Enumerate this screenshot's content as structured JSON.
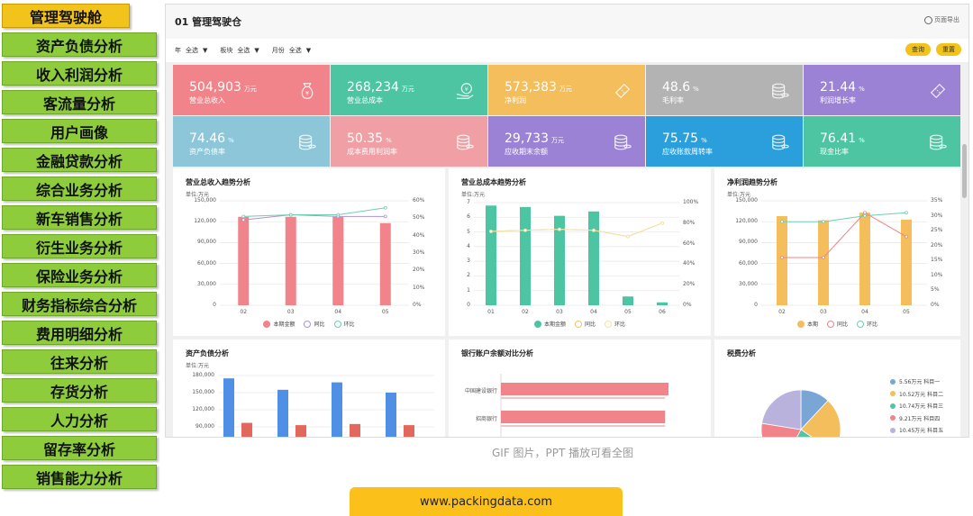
{
  "sidebar": {
    "items": [
      {
        "label": "管理驾驶舱",
        "active": true
      },
      {
        "label": "资产负债分析"
      },
      {
        "label": "收入利润分析"
      },
      {
        "label": "客流量分析"
      },
      {
        "label": "用户画像"
      },
      {
        "label": "金融贷款分析"
      },
      {
        "label": "综合业务分析"
      },
      {
        "label": "新车销售分析"
      },
      {
        "label": "衍生业务分析"
      },
      {
        "label": "保险业务分析"
      },
      {
        "label": "财务指标综合分析"
      },
      {
        "label": "费用明细分析"
      },
      {
        "label": "往来分析"
      },
      {
        "label": "存货分析"
      },
      {
        "label": "人力分析"
      },
      {
        "label": "留存率分析"
      },
      {
        "label": "销售能力分析"
      }
    ]
  },
  "dashboard": {
    "title": "01 管理驾驶仓",
    "export_label": "页面导出",
    "filters": [
      {
        "label": "年",
        "value": "全选"
      },
      {
        "label": "板块",
        "value": "全选"
      },
      {
        "label": "月份",
        "value": "全选"
      }
    ],
    "query_button": "查询",
    "reset_button": "重置"
  },
  "kpis": [
    {
      "value": "504,903",
      "unit": "万元",
      "label": "营业总收入",
      "color": "#f0848a",
      "icon": "money-bag-icon"
    },
    {
      "value": "268,234",
      "unit": "万元",
      "label": "营业总成本",
      "color": "#4ec5a2",
      "icon": "hand-coin-icon"
    },
    {
      "value": "573,383",
      "unit": "万元",
      "label": "净利润",
      "color": "#f4be5c",
      "icon": "ticket-icon"
    },
    {
      "value": "48.6",
      "unit": "%",
      "label": "毛利率",
      "color": "#b3b3b3",
      "icon": "coin-stack-icon"
    },
    {
      "value": "21.44",
      "unit": "%",
      "label": "利润增长率",
      "color": "#9b82d4",
      "icon": "ticket-icon"
    },
    {
      "value": "74.46",
      "unit": "%",
      "label": "资产负债率",
      "color": "#8cc6d8",
      "icon": "coin-stack-icon"
    },
    {
      "value": "50.35",
      "unit": "%",
      "label": "成本费用利润率",
      "color": "#f0a0a4",
      "icon": "coin-stack-icon"
    },
    {
      "value": "29,733",
      "unit": "万元",
      "label": "应收期末余额",
      "color": "#9b82d4",
      "icon": "coin-stack-icon"
    },
    {
      "value": "75.75",
      "unit": "%",
      "label": "应收账款周转率",
      "color": "#2a9fdc",
      "icon": "coin-stack-icon"
    },
    {
      "value": "76.41",
      "unit": "%",
      "label": "现金比率",
      "color": "#4ec5a2",
      "icon": "coin-stack-icon"
    }
  ],
  "colors": {
    "red": "#f0848a",
    "green": "#4ec5a2",
    "orange": "#f4be5c",
    "blue": "#4f8fe6",
    "bar_red": "#e2675c"
  },
  "chart_data": [
    {
      "type": "bar",
      "title": "营业总收入趋势分析",
      "unit_label": "单位:万元",
      "categories": [
        "02",
        "03",
        "04",
        "05"
      ],
      "series": [
        {
          "name": "本期金额",
          "type": "bar",
          "values": [
            127000,
            127000,
            127000,
            118000
          ]
        },
        {
          "name": "同比",
          "type": "line",
          "axis": "right",
          "values": [
            49,
            52,
            51,
            51
          ]
        },
        {
          "name": "环比",
          "type": "line",
          "axis": "right",
          "values": [
            51,
            52,
            52,
            56
          ]
        }
      ],
      "y_left_ticks": [
        "150,000",
        "120,000",
        "90,000",
        "60,000",
        "30,000",
        "0"
      ],
      "y_right_ticks": [
        "60%",
        "50%",
        "40%",
        "30%",
        "20%",
        "10%",
        "0%"
      ],
      "ylim": [
        0,
        150000
      ],
      "ylim_right": [
        0,
        60
      ]
    },
    {
      "type": "bar",
      "title": "营业总成本趋势分析",
      "unit_label": "单位:万元",
      "categories": [
        "01",
        "02",
        "03",
        "04",
        "05",
        "06"
      ],
      "series": [
        {
          "name": "本期金额",
          "type": "bar",
          "values": [
            6.8,
            6.7,
            6.1,
            6.4,
            0.6,
            0.2
          ]
        },
        {
          "name": "同比",
          "type": "line",
          "axis": "right",
          "values": [
            72,
            73,
            74,
            73,
            67,
            80
          ]
        },
        {
          "name": "环比",
          "type": "line",
          "axis": "right",
          "values": [
            72,
            73,
            74,
            73,
            67,
            80
          ]
        }
      ],
      "y_left_ticks": [
        "7",
        "6",
        "5",
        "4",
        "3",
        "2",
        "1",
        "0"
      ],
      "y_right_ticks": [
        "100%",
        "80%",
        "60%",
        "40%",
        "20%",
        "0%"
      ],
      "ylim": [
        0,
        7
      ],
      "ylim_right": [
        0,
        100
      ]
    },
    {
      "type": "bar",
      "title": "净利润趋势分析",
      "unit_label": "单位:万元",
      "categories": [
        "02",
        "03",
        "04",
        "05"
      ],
      "series": [
        {
          "name": "本期",
          "type": "bar",
          "values": [
            128000,
            122000,
            133000,
            123000
          ]
        },
        {
          "name": "同比",
          "type": "line",
          "axis": "right",
          "values": [
            16,
            16,
            31,
            23
          ]
        },
        {
          "name": "环比",
          "type": "line",
          "axis": "right",
          "values": [
            28,
            28,
            30,
            31
          ]
        }
      ],
      "y_left_ticks": [
        "150,000",
        "120,000",
        "90,000",
        "60,000",
        "30,000",
        "0"
      ],
      "y_right_ticks": [
        "35%",
        "30%",
        "25%",
        "20%",
        "15%",
        "10%",
        "5%",
        "0%"
      ],
      "ylim": [
        0,
        150000
      ],
      "ylim_right": [
        0,
        35
      ]
    },
    {
      "type": "bar",
      "title": "资产负债分析",
      "unit_label": "单位:万元",
      "series": [
        {
          "name": "blue",
          "values": [
            175000,
            155000,
            168000,
            150000
          ]
        },
        {
          "name": "red",
          "values": [
            97000,
            93000,
            95000,
            93000
          ]
        }
      ],
      "y_left_ticks": [
        "180,000",
        "150,000",
        "120,000",
        "90,000"
      ],
      "ylim": [
        80000,
        180000
      ]
    },
    {
      "type": "bar",
      "title": "银行账户余额对比分析",
      "categories": [
        "中国建设银行",
        "招商银行"
      ],
      "values": [
        1.0,
        0.98
      ]
    },
    {
      "type": "pie",
      "title": "税费分析",
      "slices": [
        {
          "label": "5.56万元 科目一",
          "value": 5.56,
          "color": "#7aa6d6"
        },
        {
          "label": "10.52万元 科目二",
          "value": 10.52,
          "color": "#f4be5c"
        },
        {
          "label": "10.74万元 科目三",
          "value": 10.74,
          "color": "#58c2a8"
        },
        {
          "label": "9.21万元 科目四",
          "value": 9.21,
          "color": "#f0848a"
        },
        {
          "label": "10.45万元 科目五",
          "value": 10.45,
          "color": "#b9b2dd"
        }
      ]
    }
  ],
  "caption": "GIF 图片，PPT 播放可看全图",
  "footer": "www.packingdata.com"
}
